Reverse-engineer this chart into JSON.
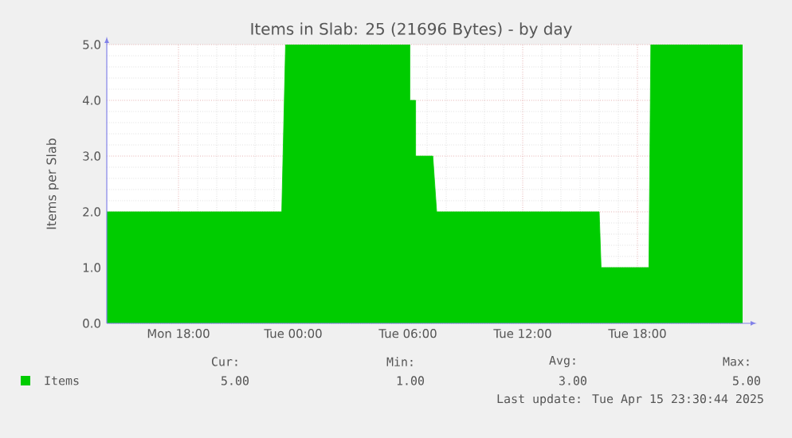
{
  "chart_data": {
    "type": "area",
    "title": "Items in Slab: 25 (21696 Bytes) - by day",
    "ylabel": "Items per Slab",
    "x": [
      "2025-04-14T14:15",
      "2025-04-14T23:24",
      "2025-04-14T23:36",
      "2025-04-15T06:06",
      "2025-04-15T06:06",
      "2025-04-15T06:24",
      "2025-04-15T06:24",
      "2025-04-15T07:18",
      "2025-04-15T07:30",
      "2025-04-15T16:00",
      "2025-04-15T16:06",
      "2025-04-15T18:36",
      "2025-04-15T18:42",
      "2025-04-15T23:30"
    ],
    "series": [
      {
        "name": "Items",
        "color": "#00cc00",
        "values": [
          2,
          2,
          5,
          5,
          4,
          4,
          3,
          3,
          2,
          2,
          1,
          1,
          5,
          5
        ]
      }
    ],
    "xlim": [
      "2025-04-14T14:15",
      "2025-04-15T23:30"
    ],
    "xticks": [
      {
        "value": "2025-04-14T18:00",
        "label": "Mon 18:00"
      },
      {
        "value": "2025-04-15T00:00",
        "label": "Tue 00:00"
      },
      {
        "value": "2025-04-15T06:00",
        "label": "Tue 06:00"
      },
      {
        "value": "2025-04-15T12:00",
        "label": "Tue 12:00"
      },
      {
        "value": "2025-04-15T18:00",
        "label": "Tue 18:00"
      }
    ],
    "ylim": [
      0,
      5
    ],
    "yticks": [
      {
        "value": 0,
        "label": "0.0"
      },
      {
        "value": 1,
        "label": "1.0"
      },
      {
        "value": 2,
        "label": "2.0"
      },
      {
        "value": 3,
        "label": "3.0"
      },
      {
        "value": 4,
        "label": "4.0"
      },
      {
        "value": 5,
        "label": "5.0"
      }
    ],
    "grid": true,
    "legend": "bottom left",
    "annotations": [
      "Cur:",
      "Min:",
      "Avg:",
      "Max:",
      "5.00",
      "1.00",
      "3.00",
      "5.00",
      "Last update: Tue Apr 15 23:30:44 2025"
    ]
  }
}
